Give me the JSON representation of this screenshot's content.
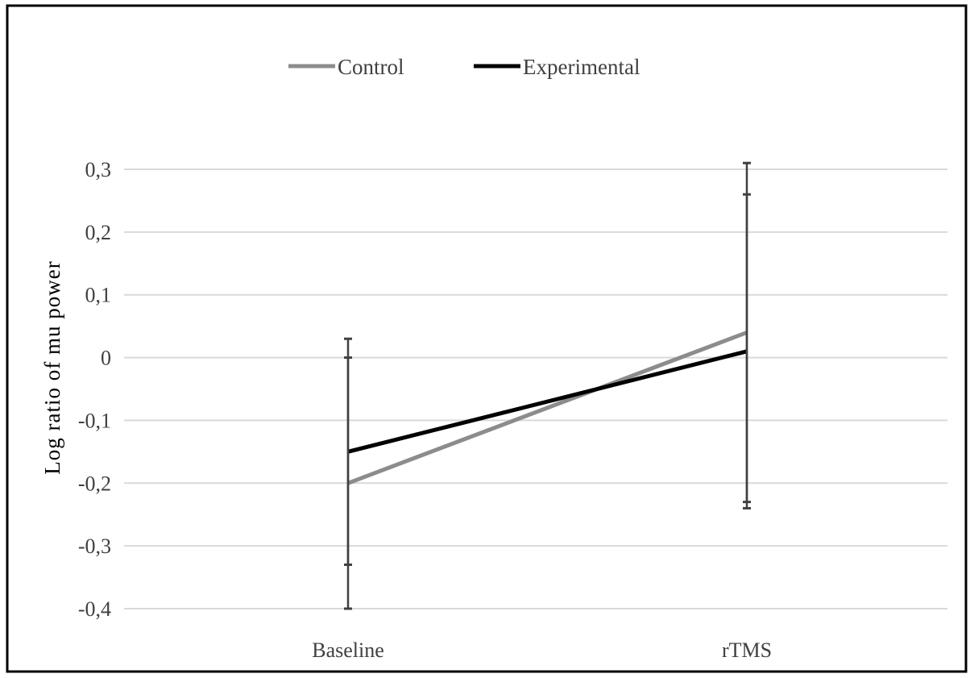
{
  "chart_data": {
    "type": "line",
    "categories": [
      "Baseline",
      "rTMS"
    ],
    "title": "",
    "xlabel": "",
    "ylabel": "Log ratio of mu power",
    "ylim": [
      -0.4,
      0.3
    ],
    "yticks": [
      0.3,
      0.2,
      0.1,
      0,
      -0.1,
      -0.2,
      -0.3,
      -0.4
    ],
    "ytick_labels": [
      "0,3",
      "0,2",
      "0,1",
      "0",
      "-0,1",
      "-0,2",
      "-0,3",
      "-0,4"
    ],
    "grid": true,
    "legend_position": "top",
    "series": [
      {
        "name": "Control",
        "color": "#8c8c8c",
        "values": [
          -0.2,
          0.04
        ],
        "error_low": [
          -0.33,
          -0.23
        ],
        "error_high": [
          0.0,
          0.26
        ]
      },
      {
        "name": "Experimental",
        "color": "#000000",
        "values": [
          -0.15,
          0.01
        ],
        "error_low": [
          -0.4,
          -0.24
        ],
        "error_high": [
          0.03,
          0.31
        ]
      }
    ],
    "errorbar_color": "#404040",
    "gridline_color": "#d9d9d9",
    "border_color": "#000000"
  }
}
